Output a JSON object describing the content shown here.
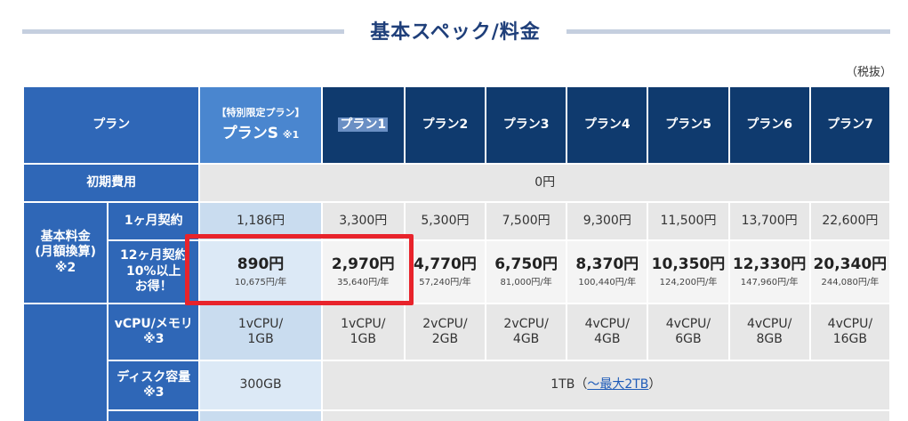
{
  "title": "基本スペック/料金",
  "tax_note": "（税抜）",
  "header": {
    "plan_label": "プラン",
    "special_small": "【特別限定プラン】",
    "special_name": "プランS",
    "special_mark": "※1",
    "plans": [
      "プラン1",
      "プラン2",
      "プラン3",
      "プラン4",
      "プラン5",
      "プラン6",
      "プラン7"
    ]
  },
  "initial_fee": {
    "label": "初期費用",
    "value": "0円"
  },
  "basic_fee": {
    "label_line1": "基本料金",
    "label_line2": "(月額換算)",
    "label_line3": "※2",
    "monthly": {
      "label": "1ヶ月契約",
      "values": [
        "1,186円",
        "3,300円",
        "5,300円",
        "7,500円",
        "9,300円",
        "11,500円",
        "13,700円",
        "22,600円"
      ]
    },
    "yearly": {
      "label": "12ヶ月契約",
      "note_line1": "10%以上",
      "note_line2": "お得！",
      "values": [
        "890円",
        "2,970円",
        "4,770円",
        "6,750円",
        "8,370円",
        "10,350円",
        "12,330円",
        "20,340円"
      ],
      "per_year": [
        "10,675円/年",
        "35,640円/年",
        "57,240円/年",
        "81,000円/年",
        "100,440円/年",
        "124,200円/年",
        "147,960円/年",
        "244,080円/年"
      ]
    }
  },
  "vcpu": {
    "label": "vCPU/メモリ",
    "mark": "※3",
    "values_top": [
      "1vCPU/",
      "1vCPU/",
      "2vCPU/",
      "2vCPU/",
      "4vCPU/",
      "4vCPU/",
      "4vCPU/",
      "4vCPU/"
    ],
    "values_bottom": [
      "1GB",
      "1GB",
      "2GB",
      "4GB",
      "4GB",
      "6GB",
      "8GB",
      "16GB"
    ]
  },
  "disk": {
    "label": "ディスク容量",
    "mark": "※3",
    "special": "300GB",
    "others": "1TB（",
    "link": "〜最大2TB",
    "close": "）"
  }
}
